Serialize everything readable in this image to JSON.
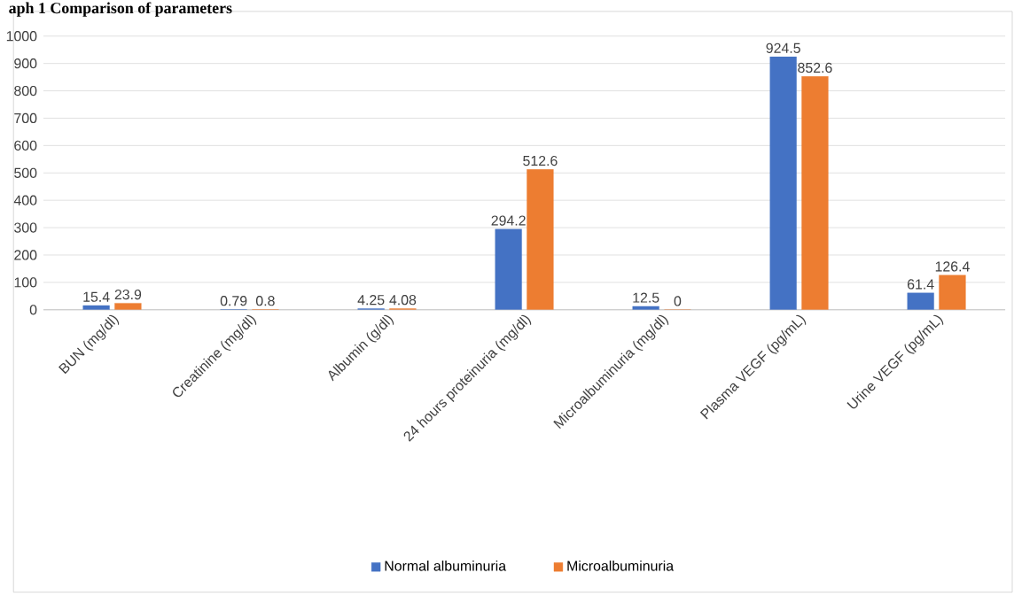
{
  "chart_data": {
    "type": "bar",
    "title": "aph 1 Comparison of parameters",
    "categories": [
      "BUN (mg/dl)",
      "Creatinine (mg/dl)",
      "Albumin (g/dl)",
      "24 hours proteinuria (mg/dl)",
      "Microalbuminuria (mg/dl)",
      "Plasma VEGF (pg/mL)",
      "Urine VEGF (pg/mL)"
    ],
    "series": [
      {
        "name": "Normal albuminuria",
        "color": "#4472c4",
        "values": [
          15.4,
          0.79,
          4.25,
          294.2,
          12.5,
          924.5,
          61.4
        ]
      },
      {
        "name": "Microalbuminuria",
        "color": "#ed7d31",
        "values": [
          23.9,
          0.8,
          4.08,
          512.6,
          0,
          852.6,
          126.4
        ]
      }
    ],
    "ylim": [
      0,
      1000
    ],
    "yticks": [
      0,
      100,
      200,
      300,
      400,
      500,
      600,
      700,
      800,
      900,
      1000
    ],
    "grid": "y",
    "legend": "bottom",
    "data_labels": true
  }
}
